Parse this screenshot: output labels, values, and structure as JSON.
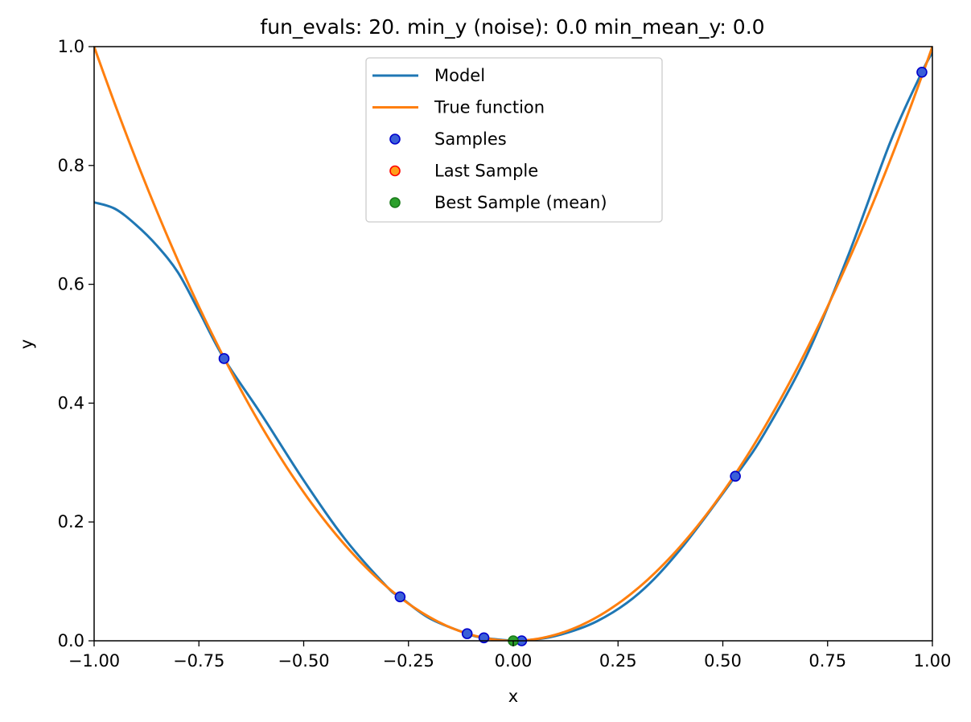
{
  "chart_data": {
    "type": "line",
    "title": "fun_evals: 20. min_y (noise): 0.0 min_mean_y: 0.0",
    "xlabel": "x",
    "ylabel": "y",
    "xlim": [
      -1.0,
      1.0
    ],
    "ylim": [
      0.0,
      1.0
    ],
    "xticks": [
      "−1.00",
      "−0.75",
      "−0.50",
      "−0.25",
      "0.00",
      "0.25",
      "0.50",
      "0.75",
      "1.00"
    ],
    "yticks": [
      "0.0",
      "0.2",
      "0.4",
      "0.6",
      "0.8",
      "1.0"
    ],
    "grid": false,
    "legend_position": "top-center",
    "series": [
      {
        "name": "Model",
        "kind": "line",
        "color": "#1f77b4",
        "x": [
          -1.0,
          -0.95,
          -0.9,
          -0.85,
          -0.8,
          -0.75,
          -0.69,
          -0.6,
          -0.5,
          -0.4,
          -0.3,
          -0.27,
          -0.2,
          -0.11,
          -0.07,
          0.0,
          0.02,
          0.1,
          0.2,
          0.3,
          0.4,
          0.53,
          0.6,
          0.7,
          0.8,
          0.9,
          0.975,
          1.0
        ],
        "y": [
          0.738,
          0.727,
          0.7,
          0.665,
          0.62,
          0.555,
          0.475,
          0.38,
          0.27,
          0.17,
          0.09,
          0.074,
          0.038,
          0.012,
          0.005,
          0.0,
          0.0,
          0.008,
          0.033,
          0.08,
          0.155,
          0.277,
          0.35,
          0.48,
          0.65,
          0.84,
          0.957,
          0.99
        ]
      },
      {
        "name": "True function",
        "kind": "line",
        "color": "#ff7f0e",
        "function": "x^2",
        "x_range": [
          -1.0,
          1.0
        ]
      },
      {
        "name": "Samples",
        "kind": "scatter",
        "color": "#3a5fd8",
        "edgecolor": "#0000cc",
        "x": [
          -0.69,
          -0.27,
          -0.11,
          -0.07,
          0.02,
          0.53,
          0.975
        ],
        "y": [
          0.475,
          0.074,
          0.012,
          0.005,
          0.0,
          0.277,
          0.957
        ]
      },
      {
        "name": "Last Sample",
        "kind": "scatter",
        "color": "#ff9f1a",
        "edgecolor": "#ff0000",
        "x": [],
        "y": []
      },
      {
        "name": "Best Sample (mean)",
        "kind": "scatter",
        "color": "#2ca02c",
        "edgecolor": "#1a7a1a",
        "x": [
          0.0
        ],
        "y": [
          0.0
        ]
      }
    ]
  }
}
